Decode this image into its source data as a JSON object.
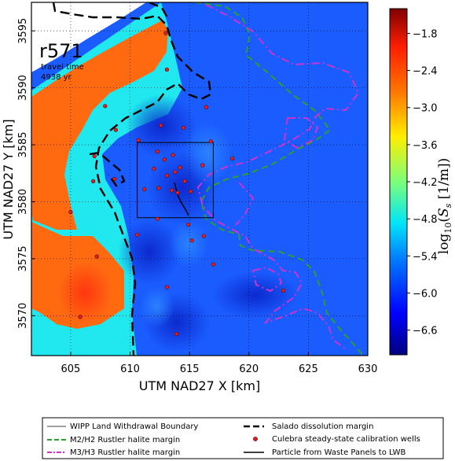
{
  "chart_data": {
    "type": "heatmap",
    "xlabel": "UTM NAD27 X [km]",
    "ylabel": "UTM NAD27 Y [km]",
    "xlim": [
      601.7,
      630
    ],
    "ylim": [
      3566.5,
      3597.5
    ],
    "x_ticks": [
      "605",
      "610",
      "615",
      "620",
      "625",
      "630"
    ],
    "y_ticks": [
      "3570",
      "3575",
      "3580",
      "3585",
      "3590",
      "3595"
    ],
    "grid": true,
    "annotation": {
      "run": "r571",
      "line1": "travel time",
      "line2": "4938 yr"
    },
    "colorbar": {
      "label": "log10(Ss [1/m])",
      "ticks": [
        "−1.8",
        "−2.4",
        "−3.0",
        "−3.6",
        "−4.2",
        "−4.8",
        "−5.4",
        "−6.0",
        "−6.6"
      ],
      "range": [
        -7.0,
        -1.4
      ],
      "colors": [
        "#00007f",
        "#0000ff",
        "#007fff",
        "#00e5f8",
        "#7cff79",
        "#ffee00",
        "#ff7700",
        "#ff1e00",
        "#7f0000"
      ]
    },
    "colors": {
      "background_field": "#1a5cff",
      "high_zone": "#ff6a10",
      "mid_zone": "#20e8ee",
      "low_zone": "#0a30d8",
      "m2h2": "#2ca02c",
      "m3h3": "#cc33cc",
      "salado": "#000000",
      "well": "#e02020"
    },
    "wipp_box": {
      "x": [
        610.6,
        617.0
      ],
      "y": [
        3578.6,
        3585.2
      ]
    },
    "wells": [
      [
        613.0,
        3594.8
      ],
      [
        613.1,
        3591.6
      ],
      [
        616.4,
        3588.3
      ],
      [
        607.9,
        3588.4
      ],
      [
        608.8,
        3586.3
      ],
      [
        612.6,
        3586.7
      ],
      [
        614.5,
        3586.5
      ],
      [
        610.7,
        3585.4
      ],
      [
        616.8,
        3585.3
      ],
      [
        612.3,
        3584.4
      ],
      [
        612.9,
        3583.7
      ],
      [
        613.6,
        3584.1
      ],
      [
        614.2,
        3583.0
      ],
      [
        612.0,
        3582.9
      ],
      [
        613.1,
        3582.3
      ],
      [
        614.6,
        3581.8
      ],
      [
        612.4,
        3581.2
      ],
      [
        613.5,
        3581.0
      ],
      [
        614.0,
        3580.8
      ],
      [
        615.1,
        3580.9
      ],
      [
        618.6,
        3583.8
      ],
      [
        616.1,
        3583.2
      ],
      [
        611.2,
        3581.1
      ],
      [
        607.0,
        3584.0
      ],
      [
        608.7,
        3582.0
      ],
      [
        605.0,
        3579.1
      ],
      [
        612.3,
        3578.5
      ],
      [
        614.9,
        3578.0
      ],
      [
        610.6,
        3577.1
      ],
      [
        615.2,
        3576.6
      ],
      [
        616.2,
        3577.0
      ],
      [
        617.0,
        3574.5
      ],
      [
        607.2,
        3575.2
      ],
      [
        613.1,
        3572.5
      ],
      [
        622.9,
        3572.2
      ],
      [
        605.8,
        3569.9
      ],
      [
        613.9,
        3568.4
      ],
      [
        606.9,
        3581.8
      ],
      [
        613.8,
        3582.6
      ]
    ],
    "legend": [
      {
        "label": "WIPP Land Withdrawal Boundary",
        "style": "thin-line"
      },
      {
        "label": "Salado dissolution margin",
        "style": "black-dash"
      },
      {
        "label": "M2/H2 Rustler halite margin",
        "style": "green-dash"
      },
      {
        "label": "Culebra steady-state calibration wells",
        "style": "red-dot"
      },
      {
        "label": "M3/H3 Rustler halite margin",
        "style": "magenta-dashdot"
      },
      {
        "label": "Particle from Waste Panels to LWB",
        "style": "black-line"
      }
    ]
  }
}
